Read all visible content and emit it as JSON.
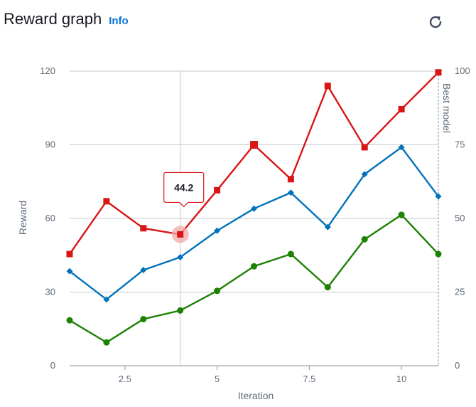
{
  "header": {
    "title": "Reward graph",
    "info_label": "Info",
    "refresh_icon": "refresh-icon"
  },
  "chart_data": {
    "type": "line",
    "xlabel": "Iteration",
    "ylabel": "Reward",
    "y2label": "Best model",
    "xlim": [
      1,
      11
    ],
    "ylim": [
      0,
      120
    ],
    "y2lim": [
      0,
      100
    ],
    "xticks": [
      "2.5",
      "5",
      "7.5",
      "10"
    ],
    "yticks": [
      "0",
      "30",
      "60",
      "90",
      "120"
    ],
    "y2ticks": [
      "0",
      "25",
      "50",
      "75",
      "100"
    ],
    "grid": true,
    "series": [
      {
        "color": "#d91515",
        "marker": "square",
        "x": [
          1,
          2,
          3,
          4,
          5,
          6,
          7,
          8,
          9,
          10,
          11
        ],
        "y": [
          45.5,
          67,
          56,
          53.5,
          71.5,
          90,
          76,
          114,
          89,
          104.5,
          119.5
        ]
      },
      {
        "color": "#0073bb",
        "marker": "diamond",
        "x": [
          1,
          2,
          3,
          4,
          5,
          6,
          7,
          8,
          9,
          10,
          11
        ],
        "y": [
          38.5,
          27,
          39,
          44.2,
          55,
          64,
          70.5,
          56.5,
          78,
          89,
          69
        ]
      },
      {
        "color": "#1d8102",
        "marker": "circle",
        "x": [
          1,
          2,
          3,
          4,
          5,
          6,
          7,
          8,
          9,
          10,
          11
        ],
        "y": [
          18.5,
          9.5,
          19,
          22.5,
          30.5,
          40.5,
          45.5,
          32,
          51.5,
          61.5,
          45.5
        ]
      }
    ],
    "highlight": {
      "x": 4,
      "y": 53.5,
      "label": "44.2"
    },
    "best_model_x": 11
  }
}
